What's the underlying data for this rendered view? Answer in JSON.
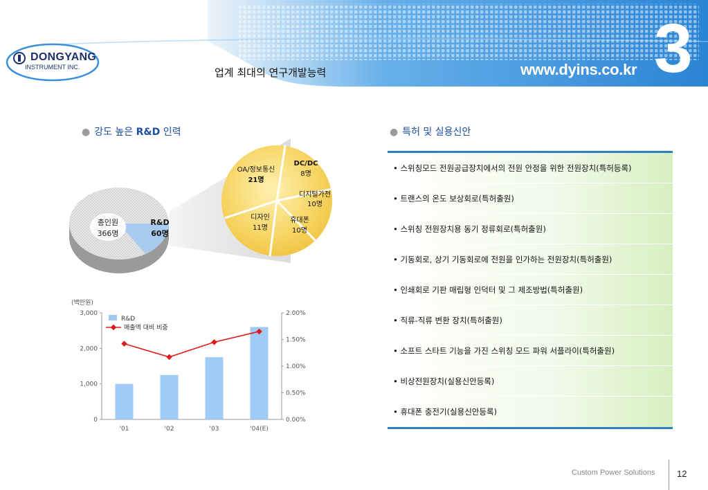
{
  "header": {
    "logo_name": "DONGYANG",
    "logo_sub": "INSTRUMENT INC.",
    "title": "업계 최대의 연구개발능력",
    "url": "www.dyins.co.kr",
    "section_number": "3"
  },
  "left": {
    "heading_pre": "강도 높은 ",
    "heading_bold": "R&D",
    "heading_post": " 인력",
    "pie_main": {
      "total_label": "총인원",
      "total_value": "366명",
      "rd_label": "R&D",
      "rd_value": "60명"
    },
    "pie_detail": [
      {
        "name": "OA/정보통신",
        "value": "21명"
      },
      {
        "name": "DC/DC",
        "value": "8명"
      },
      {
        "name": "디지털가전",
        "value": "10명"
      },
      {
        "name": "휴대폰",
        "value": "10명"
      },
      {
        "name": "디자인",
        "value": "11명"
      }
    ]
  },
  "chart_data": {
    "type": "bar",
    "unit_label": "(백만원)",
    "categories": [
      "'01",
      "'02",
      "'03",
      "'04(E)"
    ],
    "series": [
      {
        "name": "R&D",
        "type": "bar",
        "axis": "left",
        "values": [
          1000,
          1250,
          1750,
          2600
        ],
        "color": "#9fcbf5"
      },
      {
        "name": "매출액 대비 비중",
        "type": "line",
        "axis": "right",
        "values": [
          1.42,
          1.17,
          1.45,
          1.65
        ],
        "color": "#e0191b"
      }
    ],
    "y_left": {
      "ylim": [
        0,
        3000
      ],
      "ticks": [
        "0",
        "1,000",
        "2,000",
        "3,000"
      ]
    },
    "y_right": {
      "ylim": [
        0,
        2.0
      ],
      "ticks": [
        "0.00%",
        "0.50%",
        "1.00%",
        "1.50%",
        "2.00%"
      ]
    },
    "legend_position": "top-left"
  },
  "right": {
    "heading": "특허 및 실용신안",
    "patents": [
      "• 스위칭모드 전원공급장치에서의 전원 안정을 위한 전원장치(특허등록)",
      "• 트랜스의 온도 보상회로(특허출원)",
      "• 스위칭 전원장치용 동기 정류회로(특허출원)",
      "• 기동회로, 상기 기동회로에 전원을 인가하는 전원장치(특허출원)",
      "• 인쇄회로 기판 매립형 인덕터 및 그 제조방법(특허출원)",
      "• 직류-직류 변환 장치(특허출원)",
      "• 소프트 스타트 기능을 가진 스위칭 모드 파워 서플라이(특허출원)",
      "• 비상전원장치(실용신안등록)",
      "• 휴대폰 충전기(실용신안등록)"
    ]
  },
  "footer": {
    "tagline": "Custom Power Solutions",
    "page": "12"
  },
  "colors": {
    "accent_blue": "#2f7fc4",
    "header_blue": "#3a8fd9",
    "pie_yellow": "#f6d262",
    "rd_blue": "#a9cbf0",
    "bar_blue": "#9fcbf5",
    "line_red": "#e0191b"
  }
}
